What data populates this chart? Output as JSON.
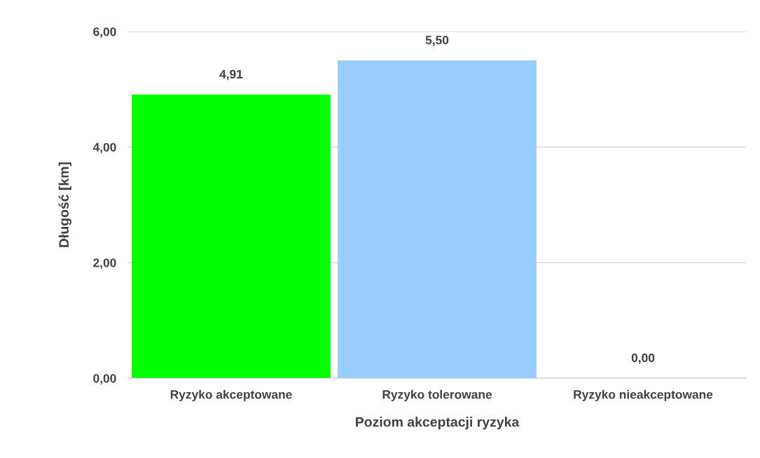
{
  "chart_data": {
    "type": "bar",
    "xlabel": "Poziom akceptacji ryzyka",
    "ylabel": "Długość [km]",
    "categories": [
      "Ryzyko akceptowane",
      "Ryzyko tolerowane",
      "Ryzyko nieakceptowane"
    ],
    "values": [
      4.91,
      5.5,
      0.0
    ],
    "colors": [
      "#00ff00",
      "#99ccff",
      "#ff9999"
    ],
    "value_labels": [
      "4,91",
      "5,50",
      "0,00"
    ],
    "ylim": [
      0,
      6
    ],
    "yticks": [
      {
        "value": 0,
        "label": "0,00"
      },
      {
        "value": 2,
        "label": "2,00"
      },
      {
        "value": 4,
        "label": "4,00"
      },
      {
        "value": 6,
        "label": "6,00"
      }
    ],
    "grid": "y"
  }
}
